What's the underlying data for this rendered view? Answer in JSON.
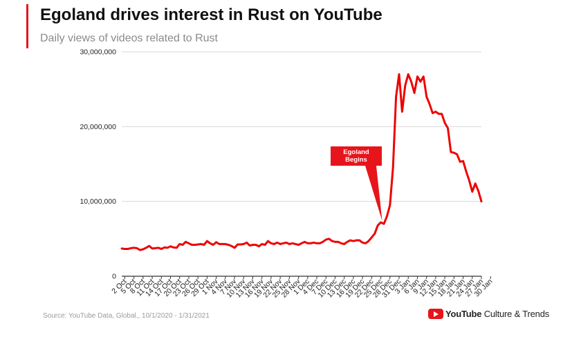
{
  "header": {
    "title": "Egoland drives interest in Rust on YouTube",
    "subtitle": "Daily views of videos related to Rust"
  },
  "footer": {
    "source": "Source: YouTube Data, Global,, 10/1/2020 - 1/31/2021",
    "brand_bold": "YouTube",
    "brand_rest": " Culture & Trends"
  },
  "colors": {
    "accent": "#e8141b",
    "line": "#ee0000",
    "grid": "#d9d9d9",
    "axis": "#333333",
    "callout": "#e8141b"
  },
  "icons": {
    "brand_logo": "youtube-play-icon"
  },
  "chart_data": {
    "type": "line",
    "title": "",
    "xlabel": "",
    "ylabel": "",
    "ylim": [
      0,
      30000000
    ],
    "yticks": [
      0,
      10000000,
      20000000,
      30000000
    ],
    "ytick_labels": [
      "0",
      "10,000,000",
      "20,000,000",
      "30,000,000"
    ],
    "grid": true,
    "xtick_labels": [
      "2 Oct",
      "5 Oct",
      "8 Oct",
      "11 Oct",
      "14 Oct",
      "17 Oct",
      "20 Oct",
      "23 Oct",
      "26 Oct",
      "29 Oct",
      "1 Nov",
      "4 Nov",
      "7 Nov",
      "10 Nov",
      "13 Nov",
      "16 Nov",
      "19 Nov",
      "22 Nov",
      "25 Nov",
      "28 Nov",
      "1 Dec",
      "4 Dec",
      "7 Dec",
      "10 Dec",
      "13 Dec",
      "16 Dec",
      "19 Dec",
      "22 Dec",
      "25 Dec",
      "28 Dec",
      "31 Dec",
      "3 Jan",
      "6 Jan",
      "9 Jan",
      "12 Jan",
      "15 Jan",
      "18 Jan",
      "21 Jan",
      "24 Jan",
      "27 Jan",
      "30 Jan"
    ],
    "x_start": "2020-10-01",
    "annotation": {
      "text": [
        "Egoland",
        "Begins"
      ],
      "date": "2020-12-25"
    },
    "series": [
      {
        "values": [
          3700000,
          3650000,
          3650000,
          3750000,
          3800000,
          3750000,
          3500000,
          3600000,
          3800000,
          4050000,
          3700000,
          3750000,
          3800000,
          3650000,
          3850000,
          3800000,
          4000000,
          3850000,
          3800000,
          4300000,
          4200000,
          4600000,
          4400000,
          4200000,
          4200000,
          4250000,
          4300000,
          4200000,
          4700000,
          4400000,
          4200000,
          4550000,
          4300000,
          4300000,
          4300000,
          4200000,
          4050000,
          3800000,
          4250000,
          4250000,
          4300000,
          4500000,
          4100000,
          4200000,
          4200000,
          4000000,
          4300000,
          4200000,
          4700000,
          4400000,
          4300000,
          4500000,
          4300000,
          4400000,
          4500000,
          4300000,
          4400000,
          4300000,
          4200000,
          4400000,
          4600000,
          4400000,
          4400000,
          4500000,
          4400000,
          4400000,
          4600000,
          4900000,
          5000000,
          4700000,
          4600000,
          4600000,
          4400000,
          4300000,
          4600000,
          4800000,
          4700000,
          4800000,
          4800000,
          4500000,
          4400000,
          4700000,
          5200000,
          5700000,
          6800000,
          7200000,
          7000000,
          8000000,
          9500000,
          14500000,
          24000000,
          27000000,
          22000000,
          25500000,
          27000000,
          26000000,
          24500000,
          26700000,
          26000000,
          26700000,
          24000000,
          23000000,
          21800000,
          22000000,
          21700000,
          21700000,
          20500000,
          19800000,
          16600000,
          16500000,
          16300000,
          15300000,
          15400000,
          14000000,
          12800000,
          11300000,
          12400000,
          11400000,
          10000000
        ]
      }
    ]
  }
}
